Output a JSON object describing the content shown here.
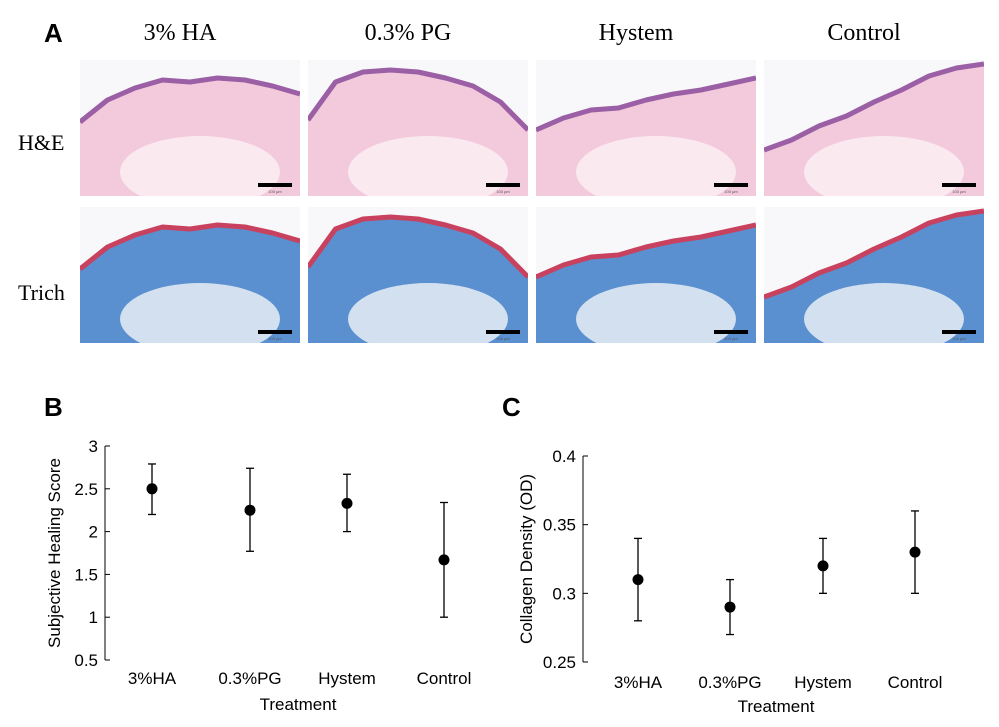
{
  "panel_a": {
    "letter": "A",
    "columns": [
      "3% HA",
      "0.3% PG",
      "Hystem",
      "Control"
    ],
    "rows": [
      "H&E",
      "Trich"
    ],
    "scale_bar_labels": [
      "100 µm",
      "100 µm",
      "100 µm",
      "100 µm"
    ],
    "colors": {
      "he_background": "#f3c9dc",
      "he_epidermis": "#9b5fa5",
      "trich_background": "#5a8fd0",
      "trich_epidermis": "#c8425f"
    }
  },
  "chart_data": [
    {
      "panel": "B",
      "type": "scatter",
      "title": "",
      "xlabel": "Treatment",
      "ylabel": "Subjective Healing Score",
      "categories": [
        "3%HA",
        "0.3%PG",
        "Hystem",
        "Control"
      ],
      "values": [
        2.5,
        2.25,
        2.33,
        1.67
      ],
      "error_low": [
        2.2,
        1.77,
        2.0,
        1.0
      ],
      "error_high": [
        2.79,
        2.74,
        2.67,
        2.34
      ],
      "ylim": [
        0.5,
        3
      ],
      "yticks": [
        0.5,
        1,
        1.5,
        2,
        2.5,
        3
      ],
      "ytick_labels": [
        "0.5",
        "1",
        "1.5",
        "2",
        "2.5",
        "3"
      ]
    },
    {
      "panel": "C",
      "type": "scatter",
      "title": "",
      "xlabel": "Treatment",
      "ylabel": "Collagen Density (OD)",
      "categories": [
        "3%HA",
        "0.3%PG",
        "Hystem",
        "Control"
      ],
      "values": [
        0.31,
        0.29,
        0.32,
        0.33
      ],
      "error_low": [
        0.28,
        0.27,
        0.3,
        0.3
      ],
      "error_high": [
        0.34,
        0.31,
        0.34,
        0.36
      ],
      "ylim": [
        0.25,
        0.4
      ],
      "yticks": [
        0.25,
        0.3,
        0.35,
        0.4
      ],
      "ytick_labels": [
        "0.25",
        "0.3",
        "0.35",
        "0.4"
      ]
    }
  ]
}
